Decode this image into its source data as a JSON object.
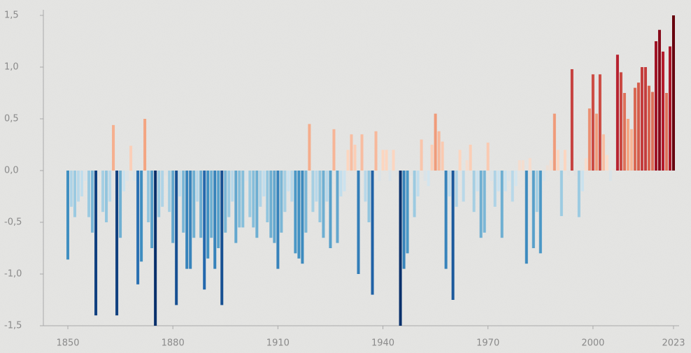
{
  "chart_data": {
    "type": "bar",
    "x": [
      1850,
      1851,
      1852,
      1853,
      1854,
      1855,
      1856,
      1857,
      1858,
      1859,
      1860,
      1861,
      1862,
      1863,
      1864,
      1865,
      1866,
      1867,
      1868,
      1869,
      1870,
      1871,
      1872,
      1873,
      1874,
      1875,
      1876,
      1877,
      1878,
      1879,
      1880,
      1881,
      1882,
      1883,
      1884,
      1885,
      1886,
      1887,
      1888,
      1889,
      1890,
      1891,
      1892,
      1893,
      1894,
      1895,
      1896,
      1897,
      1898,
      1899,
      1900,
      1901,
      1902,
      1903,
      1904,
      1905,
      1906,
      1907,
      1908,
      1909,
      1910,
      1911,
      1912,
      1913,
      1914,
      1915,
      1916,
      1917,
      1918,
      1919,
      1920,
      1921,
      1922,
      1923,
      1924,
      1925,
      1926,
      1927,
      1928,
      1929,
      1930,
      1931,
      1932,
      1933,
      1934,
      1935,
      1936,
      1937,
      1938,
      1939,
      1940,
      1941,
      1942,
      1943,
      1944,
      1945,
      1946,
      1947,
      1948,
      1949,
      1950,
      1951,
      1952,
      1953,
      1954,
      1955,
      1956,
      1957,
      1958,
      1959,
      1960,
      1961,
      1962,
      1963,
      1964,
      1965,
      1966,
      1967,
      1968,
      1969,
      1970,
      1971,
      1972,
      1973,
      1974,
      1975,
      1976,
      1977,
      1978,
      1979,
      1980,
      1981,
      1982,
      1983,
      1984,
      1985,
      1986,
      1987,
      1988,
      1989,
      1990,
      1991,
      1992,
      1993,
      1994,
      1995,
      1996,
      1997,
      1998,
      1999,
      2000,
      2001,
      2002,
      2003,
      2004,
      2005,
      2006,
      2007,
      2008,
      2009,
      2010,
      2011,
      2012,
      2013,
      2014,
      2015,
      2016,
      2017,
      2018,
      2019,
      2020,
      2021,
      2022,
      2023
    ],
    "values": [
      -0.86,
      -0.35,
      -0.45,
      -0.3,
      -0.25,
      -0.1,
      -0.45,
      -0.6,
      -1.4,
      -0.05,
      -0.4,
      -0.5,
      -0.3,
      0.44,
      -1.4,
      -0.65,
      -0.2,
      -0.1,
      0.24,
      -0.1,
      -1.1,
      -0.88,
      0.5,
      -0.5,
      -0.75,
      -1.5,
      -0.45,
      -0.35,
      -0.05,
      -0.4,
      -0.7,
      -1.3,
      -0.25,
      -0.6,
      -0.95,
      -0.95,
      -0.65,
      -0.3,
      -0.65,
      -1.15,
      -0.85,
      -0.65,
      -0.95,
      -0.75,
      -1.3,
      -0.6,
      -0.45,
      -0.3,
      -0.7,
      -0.55,
      -0.55,
      -0.1,
      -0.45,
      -0.55,
      -0.65,
      -0.35,
      -0.25,
      -0.5,
      -0.65,
      -0.7,
      -0.95,
      -0.6,
      -0.4,
      -0.2,
      -0.3,
      -0.8,
      -0.85,
      -0.9,
      -0.6,
      0.45,
      -0.4,
      -0.3,
      -0.5,
      -0.65,
      -0.3,
      -0.75,
      0.4,
      -0.7,
      -0.25,
      -0.2,
      0.2,
      0.35,
      0.25,
      -1.0,
      0.35,
      -0.3,
      -0.5,
      -1.2,
      0.38,
      -0.1,
      0.2,
      0.2,
      -0.1,
      0.2,
      -0.05,
      -1.5,
      -0.95,
      -0.8,
      -0.05,
      -0.45,
      -0.25,
      0.3,
      -0.1,
      -0.15,
      0.25,
      0.55,
      0.38,
      0.28,
      -0.95,
      -0.25,
      -1.25,
      -0.35,
      0.2,
      -0.3,
      0.1,
      0.25,
      -0.4,
      -0.2,
      -0.65,
      -0.6,
      0.27,
      -0.1,
      -0.35,
      -0.2,
      -0.65,
      -0.2,
      -0.1,
      -0.3,
      -0.15,
      0.1,
      0.1,
      -0.9,
      0.12,
      -0.75,
      -0.4,
      -0.8,
      -0.1,
      0.05,
      0.1,
      0.55,
      0.2,
      -0.44,
      0.2,
      -0.05,
      0.98,
      -0.05,
      -0.45,
      -0.2,
      0.12,
      0.6,
      0.93,
      0.55,
      0.93,
      0.35,
      0.15,
      -0.1,
      0.02,
      1.12,
      0.95,
      0.75,
      0.5,
      0.4,
      0.8,
      0.85,
      1.0,
      1.0,
      0.82,
      0.76,
      1.25,
      1.36,
      1.15,
      0.75,
      1.2,
      1.5
    ],
    "colormap": [
      "#08306b",
      "#2166ac",
      "#4393c3",
      "#92c5de",
      "#d1e5f0",
      "#fddbc7",
      "#f4a582",
      "#d6604d",
      "#b2182b",
      "#67000d"
    ],
    "xlim": [
      1850,
      2023
    ],
    "xticks": [
      1850,
      1880,
      1910,
      1940,
      1970,
      2000,
      2023
    ],
    "ylim": [
      -1.5,
      1.5
    ],
    "yticks": [
      {
        "value": -1.5,
        "label": "-1,5"
      },
      {
        "value": -1.0,
        "label": "-1,0"
      },
      {
        "value": -0.5,
        "label": "-0,5"
      },
      {
        "value": 0,
        "label": "0,0"
      },
      {
        "value": 0.5,
        "label": "0,5"
      },
      {
        "value": 1.0,
        "label": "1,0"
      },
      {
        "value": 1.5,
        "label": "1,5"
      }
    ]
  }
}
